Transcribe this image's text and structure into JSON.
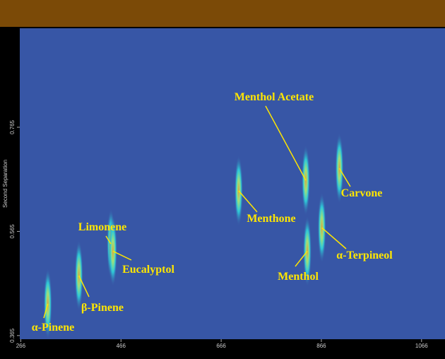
{
  "chart_data": {
    "type": "contour",
    "ylabel": "Second Separation",
    "xlim": [
      264,
      1110
    ],
    "xticks": [
      266,
      466,
      666,
      866,
      1066
    ],
    "ylim": [
      0.358,
      0.955
    ],
    "yticks": [
      0.365,
      0.565,
      0.765
    ],
    "color": "#ffe600",
    "peaks": [
      {
        "name": "α-Pinene",
        "x": 320,
        "y": 0.426
      },
      {
        "name": "β-Pinene",
        "x": 382,
        "y": 0.48
      },
      {
        "name": "Limonene",
        "x": 446,
        "y": 0.541
      },
      {
        "name": "Eucalyptol",
        "x": 450,
        "y": 0.527
      },
      {
        "name": "Menthone",
        "x": 701,
        "y": 0.643
      },
      {
        "name": "Menthol Acetate",
        "x": 835,
        "y": 0.663
      },
      {
        "name": "Menthol",
        "x": 838,
        "y": 0.527
      },
      {
        "name": "Carvone",
        "x": 902,
        "y": 0.686
      },
      {
        "name": "α-Terpineol",
        "x": 867,
        "y": 0.572
      }
    ]
  }
}
